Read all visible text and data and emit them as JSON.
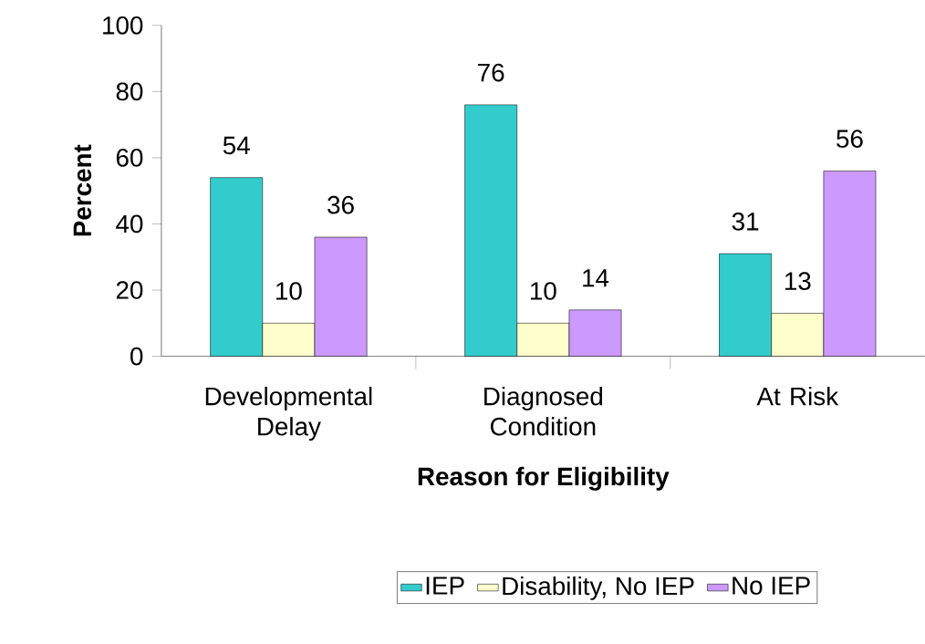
{
  "chart_data": {
    "type": "bar",
    "xlabel": "Reason for Eligibility",
    "ylabel": "Percent",
    "categories": [
      "Developmental Delay",
      "Diagnosed Condition",
      "At Risk"
    ],
    "series": [
      {
        "name": "IEP",
        "color": "#33cccc",
        "values": [
          54,
          76,
          31
        ]
      },
      {
        "name": "Disability, No IEP",
        "color": "#ffffcc",
        "values": [
          10,
          10,
          13
        ]
      },
      {
        "name": "No IEP",
        "color": "#cc99ff",
        "values": [
          36,
          14,
          56
        ]
      }
    ],
    "ylim": [
      0,
      100
    ],
    "yticks": [
      0,
      20,
      40,
      60,
      80,
      100
    ],
    "data_labels": true,
    "legend": "bottom",
    "grid": false
  }
}
